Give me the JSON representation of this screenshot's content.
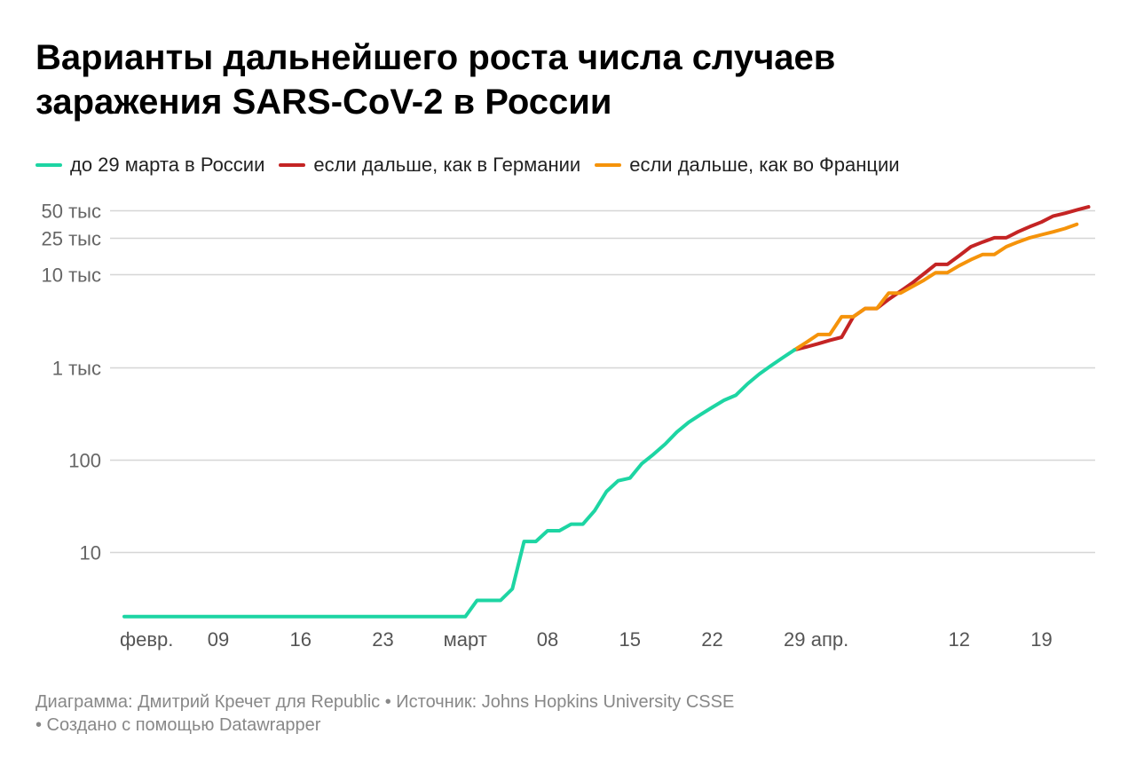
{
  "title": [
    "Варианты дальнейшего роста числа случаев",
    "заражения SARS-CoV-2 в России"
  ],
  "legend": [
    {
      "label": "до 29 марта в России",
      "color": "#1dd5a3"
    },
    {
      "label": "если дальше, как в Германии",
      "color": "#c42424"
    },
    {
      "label": "если дальше, как во Франции",
      "color": "#f5930a"
    }
  ],
  "footer": {
    "line1": "Диаграмма: Дмитрий Кречет для Republic • Источник: Johns Hopkins University CSSE",
    "line2": "• Создано с помощью Datawrapper"
  },
  "chart_data": {
    "type": "line",
    "y_scale": "log",
    "grid": true,
    "y_ticks": [
      {
        "value": 10,
        "label": "10"
      },
      {
        "value": 100,
        "label": "100"
      },
      {
        "value": 1000,
        "label": "1 тыс"
      },
      {
        "value": 10000,
        "label": "10 тыс"
      },
      {
        "value": 25000,
        "label": "25 тыс"
      },
      {
        "value": 50000,
        "label": "50 тыс"
      }
    ],
    "x_ticks": [
      {
        "date": "2020-02-01",
        "label": "февр."
      },
      {
        "date": "2020-02-09",
        "label": "09"
      },
      {
        "date": "2020-02-16",
        "label": "16"
      },
      {
        "date": "2020-02-23",
        "label": "23"
      },
      {
        "date": "2020-03-01",
        "label": "март"
      },
      {
        "date": "2020-03-08",
        "label": "08"
      },
      {
        "date": "2020-03-15",
        "label": "15"
      },
      {
        "date": "2020-03-22",
        "label": "22"
      },
      {
        "date": "2020-03-29",
        "label": "29"
      },
      {
        "date": "2020-04-01",
        "label": "апр."
      },
      {
        "date": "2020-04-12",
        "label": "12"
      },
      {
        "date": "2020-04-19",
        "label": "19"
      }
    ],
    "x_range": [
      "2020-02-01",
      "2020-04-21"
    ],
    "series": [
      {
        "name": "до 29 марта в России",
        "color": "#1dd5a3",
        "points": [
          [
            "2020-02-01",
            2
          ],
          [
            "2020-02-02",
            2
          ],
          [
            "2020-02-03",
            2
          ],
          [
            "2020-02-04",
            2
          ],
          [
            "2020-02-05",
            2
          ],
          [
            "2020-02-06",
            2
          ],
          [
            "2020-02-07",
            2
          ],
          [
            "2020-02-08",
            2
          ],
          [
            "2020-02-09",
            2
          ],
          [
            "2020-02-10",
            2
          ],
          [
            "2020-02-11",
            2
          ],
          [
            "2020-02-12",
            2
          ],
          [
            "2020-02-13",
            2
          ],
          [
            "2020-02-14",
            2
          ],
          [
            "2020-02-15",
            2
          ],
          [
            "2020-02-16",
            2
          ],
          [
            "2020-02-17",
            2
          ],
          [
            "2020-02-18",
            2
          ],
          [
            "2020-02-19",
            2
          ],
          [
            "2020-02-20",
            2
          ],
          [
            "2020-02-21",
            2
          ],
          [
            "2020-02-22",
            2
          ],
          [
            "2020-02-23",
            2
          ],
          [
            "2020-02-24",
            2
          ],
          [
            "2020-02-25",
            2
          ],
          [
            "2020-02-26",
            2
          ],
          [
            "2020-02-27",
            2
          ],
          [
            "2020-02-28",
            2
          ],
          [
            "2020-02-29",
            2
          ],
          [
            "2020-03-01",
            2
          ],
          [
            "2020-03-02",
            3
          ],
          [
            "2020-03-03",
            3
          ],
          [
            "2020-03-04",
            3
          ],
          [
            "2020-03-05",
            4
          ],
          [
            "2020-03-06",
            13
          ],
          [
            "2020-03-07",
            13
          ],
          [
            "2020-03-08",
            17
          ],
          [
            "2020-03-09",
            17
          ],
          [
            "2020-03-10",
            20
          ],
          [
            "2020-03-11",
            20
          ],
          [
            "2020-03-12",
            28
          ],
          [
            "2020-03-13",
            45
          ],
          [
            "2020-03-14",
            59
          ],
          [
            "2020-03-15",
            63
          ],
          [
            "2020-03-16",
            90
          ],
          [
            "2020-03-17",
            114
          ],
          [
            "2020-03-18",
            147
          ],
          [
            "2020-03-19",
            199
          ],
          [
            "2020-03-20",
            253
          ],
          [
            "2020-03-21",
            306
          ],
          [
            "2020-03-22",
            367
          ],
          [
            "2020-03-23",
            438
          ],
          [
            "2020-03-24",
            495
          ],
          [
            "2020-03-25",
            658
          ],
          [
            "2020-03-26",
            840
          ],
          [
            "2020-03-27",
            1036
          ],
          [
            "2020-03-28",
            1264
          ],
          [
            "2020-03-29",
            1534
          ]
        ]
      },
      {
        "name": "если дальше, как в Германии",
        "color": "#c42424",
        "points": [
          [
            "2020-03-29",
            1534
          ],
          [
            "2020-03-30",
            1650
          ],
          [
            "2020-03-31",
            1790
          ],
          [
            "2020-04-01",
            1950
          ],
          [
            "2020-04-02",
            2100
          ],
          [
            "2020-04-03",
            3500
          ],
          [
            "2020-04-04",
            4300
          ],
          [
            "2020-04-05",
            4300
          ],
          [
            "2020-04-06",
            5400
          ],
          [
            "2020-04-07",
            6600
          ],
          [
            "2020-04-08",
            8100
          ],
          [
            "2020-04-09",
            10200
          ],
          [
            "2020-04-10",
            12900
          ],
          [
            "2020-04-11",
            12900
          ],
          [
            "2020-04-12",
            16000
          ],
          [
            "2020-04-13",
            20000
          ],
          [
            "2020-04-14",
            22500
          ],
          [
            "2020-04-15",
            25000
          ],
          [
            "2020-04-16",
            25000
          ],
          [
            "2020-04-17",
            29000
          ],
          [
            "2020-04-18",
            33000
          ],
          [
            "2020-04-19",
            37000
          ],
          [
            "2020-04-20",
            43000
          ],
          [
            "2020-04-21",
            46000
          ],
          [
            "2020-04-22",
            50000
          ],
          [
            "2020-04-23",
            54000
          ]
        ]
      },
      {
        "name": "если дальше, как во Франции",
        "color": "#f5930a",
        "points": [
          [
            "2020-03-29",
            1534
          ],
          [
            "2020-03-30",
            1850
          ],
          [
            "2020-03-31",
            2250
          ],
          [
            "2020-04-01",
            2250
          ],
          [
            "2020-04-02",
            3500
          ],
          [
            "2020-04-03",
            3500
          ],
          [
            "2020-04-04",
            4300
          ],
          [
            "2020-04-05",
            4300
          ],
          [
            "2020-04-06",
            6300
          ],
          [
            "2020-04-07",
            6300
          ],
          [
            "2020-04-08",
            7400
          ],
          [
            "2020-04-09",
            8700
          ],
          [
            "2020-04-10",
            10500
          ],
          [
            "2020-04-11",
            10500
          ],
          [
            "2020-04-12",
            12500
          ],
          [
            "2020-04-13",
            14500
          ],
          [
            "2020-04-14",
            16500
          ],
          [
            "2020-04-15",
            16500
          ],
          [
            "2020-04-16",
            20000
          ],
          [
            "2020-04-17",
            22500
          ],
          [
            "2020-04-18",
            25000
          ],
          [
            "2020-04-19",
            27000
          ],
          [
            "2020-04-20",
            29000
          ],
          [
            "2020-04-21",
            31500
          ],
          [
            "2020-04-22",
            35000
          ]
        ]
      }
    ]
  }
}
